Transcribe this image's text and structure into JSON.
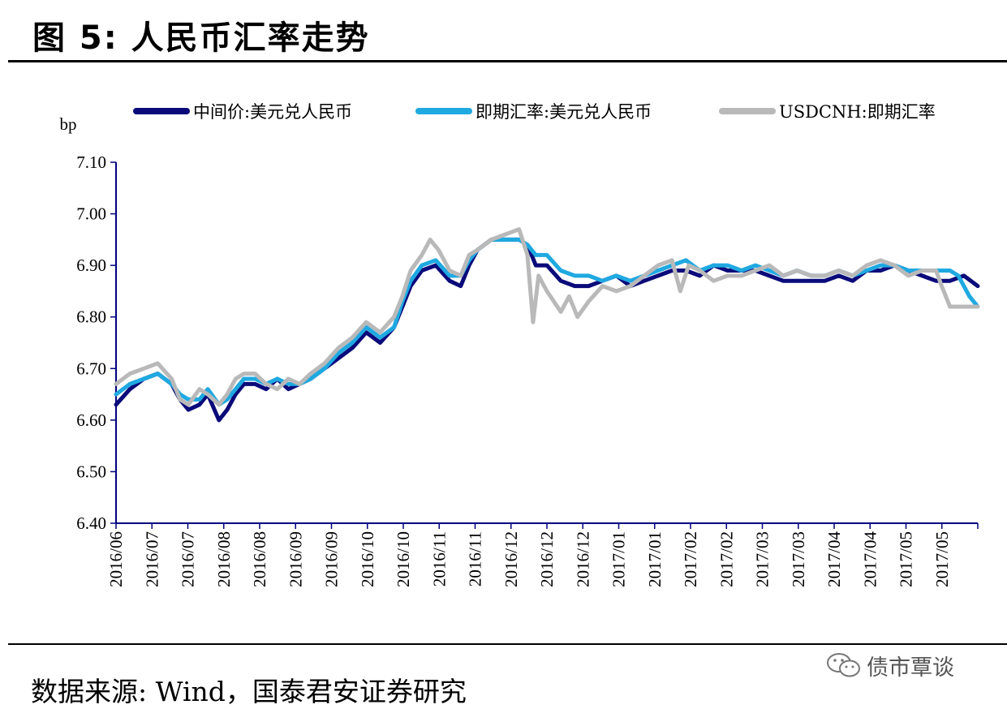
{
  "figure_title": "图 5: 人民币汇率走势",
  "source_note": "数据来源: Wind，国泰君安证券研究",
  "watermark": "债市覃谈",
  "colors": {
    "series_1": "#0a0a7a",
    "series_2": "#1fa9e1",
    "series_3": "#b9b9b9",
    "axis": "#000080"
  },
  "chart_data": {
    "type": "line",
    "ylabel": "bp",
    "ylim": [
      6.4,
      7.1
    ],
    "yticks": [
      "7.10",
      "7.00",
      "6.90",
      "6.80",
      "6.70",
      "6.60",
      "6.50",
      "6.40"
    ],
    "x_tick_labels": [
      "2016/06",
      "2016/07",
      "2016/07",
      "2016/08",
      "2016/08",
      "2016/09",
      "2016/09",
      "2016/10",
      "2016/10",
      "2016/11",
      "2016/11",
      "2016/12",
      "2016/12",
      "2016/12",
      "2017/01",
      "2017/01",
      "2017/02",
      "2017/02",
      "2017/03",
      "2017/03",
      "2017/04",
      "2017/04",
      "2017/05",
      "2017/05"
    ],
    "grid": false,
    "legend_position": "top",
    "series": [
      {
        "name": "中间价:美元兑人民币",
        "values": [
          [
            0,
            6.63
          ],
          [
            0.5,
            6.66
          ],
          [
            1,
            6.68
          ],
          [
            1.5,
            6.69
          ],
          [
            2,
            6.67
          ],
          [
            2.3,
            6.64
          ],
          [
            2.6,
            6.62
          ],
          [
            3,
            6.63
          ],
          [
            3.3,
            6.65
          ],
          [
            3.7,
            6.6
          ],
          [
            4,
            6.62
          ],
          [
            4.3,
            6.65
          ],
          [
            4.6,
            6.67
          ],
          [
            5,
            6.67
          ],
          [
            5.4,
            6.66
          ],
          [
            5.8,
            6.68
          ],
          [
            6.2,
            6.66
          ],
          [
            6.6,
            6.67
          ],
          [
            7,
            6.68
          ],
          [
            7.5,
            6.7
          ],
          [
            8,
            6.72
          ],
          [
            8.5,
            6.74
          ],
          [
            9,
            6.77
          ],
          [
            9.5,
            6.75
          ],
          [
            10,
            6.78
          ],
          [
            10.3,
            6.82
          ],
          [
            10.6,
            6.86
          ],
          [
            11,
            6.89
          ],
          [
            11.5,
            6.9
          ],
          [
            12,
            6.87
          ],
          [
            12.4,
            6.86
          ],
          [
            12.7,
            6.9
          ],
          [
            13,
            6.93
          ],
          [
            13.5,
            6.95
          ],
          [
            14,
            6.95
          ],
          [
            14.5,
            6.95
          ],
          [
            14.8,
            6.94
          ],
          [
            15.1,
            6.9
          ],
          [
            15.5,
            6.9
          ],
          [
            16,
            6.87
          ],
          [
            16.5,
            6.86
          ],
          [
            17,
            6.86
          ],
          [
            17.5,
            6.87
          ],
          [
            18,
            6.88
          ],
          [
            18.5,
            6.86
          ],
          [
            19,
            6.87
          ],
          [
            19.5,
            6.88
          ],
          [
            20,
            6.89
          ],
          [
            20.5,
            6.89
          ],
          [
            21,
            6.88
          ],
          [
            21.5,
            6.9
          ],
          [
            22,
            6.89
          ],
          [
            22.5,
            6.89
          ],
          [
            23,
            6.89
          ],
          [
            23.5,
            6.88
          ],
          [
            24,
            6.87
          ],
          [
            24.5,
            6.87
          ],
          [
            25,
            6.87
          ],
          [
            25.5,
            6.87
          ],
          [
            26,
            6.88
          ],
          [
            26.5,
            6.87
          ],
          [
            27,
            6.89
          ],
          [
            27.5,
            6.89
          ],
          [
            28,
            6.9
          ],
          [
            28.5,
            6.89
          ],
          [
            29,
            6.88
          ],
          [
            29.5,
            6.87
          ],
          [
            30,
            6.87
          ],
          [
            30.5,
            6.88
          ],
          [
            31,
            6.86
          ]
        ]
      },
      {
        "name": "即期汇率:美元兑人民币",
        "values": [
          [
            0,
            6.65
          ],
          [
            0.5,
            6.67
          ],
          [
            1,
            6.68
          ],
          [
            1.5,
            6.69
          ],
          [
            2,
            6.67
          ],
          [
            2.3,
            6.65
          ],
          [
            2.6,
            6.64
          ],
          [
            3,
            6.64
          ],
          [
            3.3,
            6.66
          ],
          [
            3.7,
            6.63
          ],
          [
            4,
            6.64
          ],
          [
            4.3,
            6.66
          ],
          [
            4.6,
            6.68
          ],
          [
            5,
            6.68
          ],
          [
            5.4,
            6.67
          ],
          [
            5.8,
            6.68
          ],
          [
            6.2,
            6.67
          ],
          [
            6.6,
            6.67
          ],
          [
            7,
            6.68
          ],
          [
            7.5,
            6.7
          ],
          [
            8,
            6.73
          ],
          [
            8.5,
            6.75
          ],
          [
            9,
            6.78
          ],
          [
            9.5,
            6.76
          ],
          [
            10,
            6.78
          ],
          [
            10.3,
            6.83
          ],
          [
            10.6,
            6.87
          ],
          [
            11,
            6.9
          ],
          [
            11.5,
            6.91
          ],
          [
            12,
            6.88
          ],
          [
            12.4,
            6.88
          ],
          [
            12.7,
            6.91
          ],
          [
            13,
            6.93
          ],
          [
            13.5,
            6.95
          ],
          [
            14,
            6.95
          ],
          [
            14.5,
            6.95
          ],
          [
            14.8,
            6.94
          ],
          [
            15.1,
            6.92
          ],
          [
            15.5,
            6.92
          ],
          [
            16,
            6.89
          ],
          [
            16.5,
            6.88
          ],
          [
            17,
            6.88
          ],
          [
            17.5,
            6.87
          ],
          [
            18,
            6.88
          ],
          [
            18.5,
            6.87
          ],
          [
            19,
            6.88
          ],
          [
            19.5,
            6.89
          ],
          [
            20,
            6.9
          ],
          [
            20.5,
            6.91
          ],
          [
            21,
            6.89
          ],
          [
            21.5,
            6.9
          ],
          [
            22,
            6.9
          ],
          [
            22.5,
            6.89
          ],
          [
            23,
            6.9
          ],
          [
            23.5,
            6.89
          ],
          [
            24,
            6.88
          ],
          [
            24.5,
            6.89
          ],
          [
            25,
            6.88
          ],
          [
            25.5,
            6.88
          ],
          [
            26,
            6.89
          ],
          [
            26.5,
            6.88
          ],
          [
            27,
            6.89
          ],
          [
            27.5,
            6.9
          ],
          [
            28,
            6.9
          ],
          [
            28.5,
            6.89
          ],
          [
            29,
            6.89
          ],
          [
            29.5,
            6.89
          ],
          [
            30,
            6.89
          ],
          [
            30.3,
            6.88
          ],
          [
            30.7,
            6.84
          ],
          [
            31,
            6.82
          ]
        ]
      },
      {
        "name": "USDCNH:即期汇率",
        "values": [
          [
            0,
            6.67
          ],
          [
            0.5,
            6.69
          ],
          [
            1,
            6.7
          ],
          [
            1.5,
            6.71
          ],
          [
            2,
            6.68
          ],
          [
            2.3,
            6.64
          ],
          [
            2.6,
            6.63
          ],
          [
            3,
            6.66
          ],
          [
            3.3,
            6.65
          ],
          [
            3.7,
            6.63
          ],
          [
            4,
            6.65
          ],
          [
            4.3,
            6.68
          ],
          [
            4.6,
            6.69
          ],
          [
            5,
            6.69
          ],
          [
            5.4,
            6.67
          ],
          [
            5.8,
            6.66
          ],
          [
            6.2,
            6.68
          ],
          [
            6.6,
            6.67
          ],
          [
            7,
            6.69
          ],
          [
            7.5,
            6.71
          ],
          [
            8,
            6.74
          ],
          [
            8.5,
            6.76
          ],
          [
            9,
            6.79
          ],
          [
            9.5,
            6.77
          ],
          [
            10,
            6.8
          ],
          [
            10.3,
            6.84
          ],
          [
            10.6,
            6.89
          ],
          [
            11,
            6.92
          ],
          [
            11.3,
            6.95
          ],
          [
            11.6,
            6.93
          ],
          [
            12,
            6.89
          ],
          [
            12.4,
            6.88
          ],
          [
            12.7,
            6.92
          ],
          [
            13,
            6.93
          ],
          [
            13.5,
            6.95
          ],
          [
            14,
            6.96
          ],
          [
            14.5,
            6.97
          ],
          [
            14.8,
            6.92
          ],
          [
            15.0,
            6.79
          ],
          [
            15.2,
            6.88
          ],
          [
            15.5,
            6.85
          ],
          [
            16,
            6.81
          ],
          [
            16.3,
            6.84
          ],
          [
            16.6,
            6.8
          ],
          [
            17,
            6.83
          ],
          [
            17.5,
            6.86
          ],
          [
            18,
            6.85
          ],
          [
            18.5,
            6.86
          ],
          [
            19,
            6.88
          ],
          [
            19.5,
            6.9
          ],
          [
            20,
            6.91
          ],
          [
            20.3,
            6.85
          ],
          [
            20.6,
            6.9
          ],
          [
            21,
            6.89
          ],
          [
            21.5,
            6.87
          ],
          [
            22,
            6.88
          ],
          [
            22.5,
            6.88
          ],
          [
            23,
            6.89
          ],
          [
            23.5,
            6.9
          ],
          [
            24,
            6.88
          ],
          [
            24.5,
            6.89
          ],
          [
            25,
            6.88
          ],
          [
            25.5,
            6.88
          ],
          [
            26,
            6.89
          ],
          [
            26.5,
            6.88
          ],
          [
            27,
            6.9
          ],
          [
            27.5,
            6.91
          ],
          [
            28,
            6.9
          ],
          [
            28.5,
            6.88
          ],
          [
            29,
            6.89
          ],
          [
            29.5,
            6.89
          ],
          [
            29.7,
            6.86
          ],
          [
            30,
            6.82
          ],
          [
            30.5,
            6.82
          ],
          [
            31,
            6.82
          ]
        ]
      }
    ]
  }
}
